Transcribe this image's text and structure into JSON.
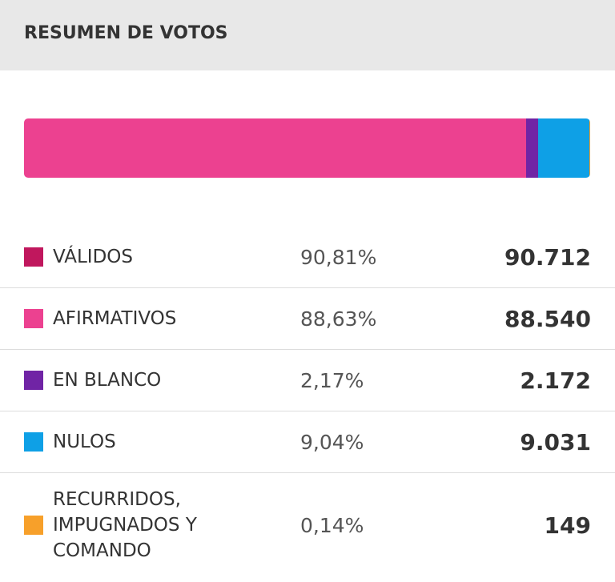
{
  "chart_data": {
    "type": "stacked-summary",
    "title": "RESUMEN DE VOTOS",
    "categories": [
      "VÁLIDOS",
      "AFIRMATIVOS",
      "EN BLANCO",
      "NULOS",
      "RECURRIDOS, IMPUGNADOS Y COMANDO"
    ],
    "colors": [
      "#c0175d",
      "#ec4190",
      "#7024a5",
      "#0ea0e6",
      "#f7a02a"
    ],
    "values": [
      90712,
      88540,
      2172,
      9031,
      149
    ],
    "value_labels": [
      "90.712",
      "88.540",
      "2.172",
      "9.031",
      "149"
    ],
    "shares": [
      90.81,
      88.63,
      2.17,
      9.04,
      0.14
    ],
    "share_labels": [
      "90,81%",
      "88,63%",
      "2,17%",
      "9,04%",
      "0,14%"
    ],
    "in_bar": [
      1,
      2,
      3,
      4
    ]
  }
}
